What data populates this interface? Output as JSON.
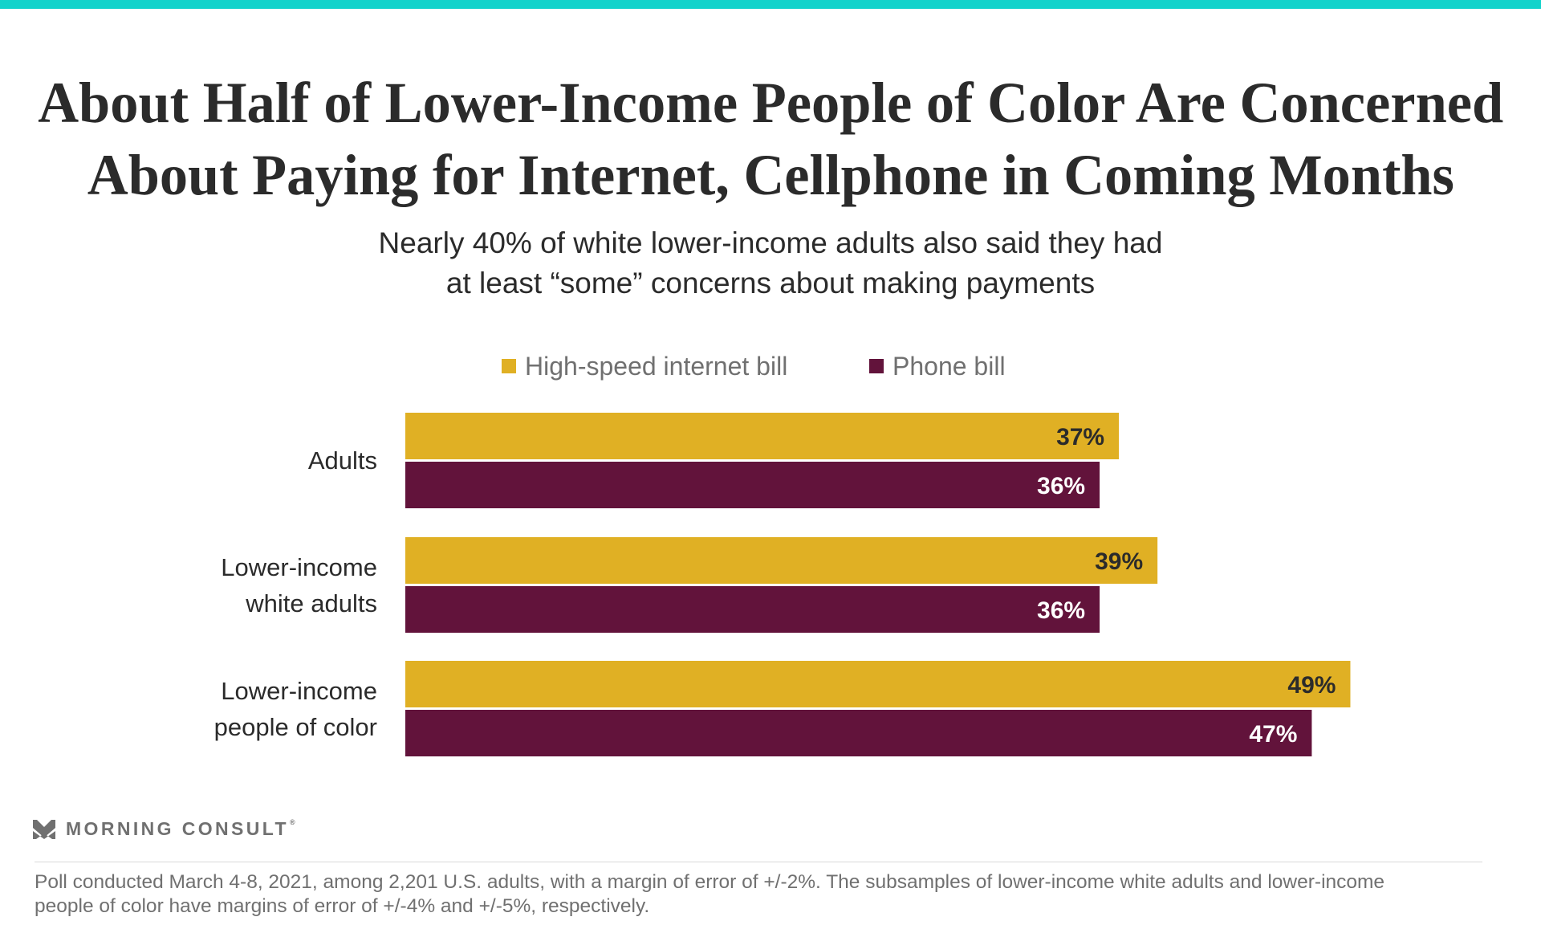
{
  "colors": {
    "accent_bar": "#12d3cb",
    "internet": "#e0b024",
    "phone": "#62133b",
    "label_on_internet": "#2b2b2b",
    "label_on_phone": "#ffffff"
  },
  "header": {
    "title_lines": [
      "About Half of Lower-Income People of Color Are Concerned",
      "About Paying for Internet, Cellphone in Coming Months"
    ],
    "subtitle_lines": [
      "Nearly 40% of white lower-income adults also said they had",
      "at least “some” concerns about making payments"
    ]
  },
  "chart_data": {
    "type": "bar",
    "orientation": "horizontal",
    "title": "About Half of Lower-Income People of Color Are Concerned About Paying for Internet, Cellphone in Coming Months",
    "subtitle": "Nearly 40% of white lower-income adults also said they had at least “some” concerns about making payments",
    "xlabel": "",
    "ylabel": "",
    "xlim": [
      0,
      100
    ],
    "grid": false,
    "legend_position": "top-center",
    "categories": [
      [
        "Adults"
      ],
      [
        "Lower-income",
        "white adults"
      ],
      [
        "Lower-income",
        "people of color"
      ]
    ],
    "series": [
      {
        "name": "High-speed internet bill",
        "color": "#e0b024",
        "values": [
          37,
          39,
          49
        ],
        "labels": [
          "37%",
          "39%",
          "49%"
        ]
      },
      {
        "name": "Phone bill",
        "color": "#62133b",
        "values": [
          36,
          36,
          47
        ],
        "labels": [
          "36%",
          "36%",
          "47%"
        ]
      }
    ]
  },
  "brand": {
    "name": "MORNING CONSULT",
    "registered_mark": "®",
    "icon": "morning-consult-logo-icon"
  },
  "footnote": {
    "lines": [
      "Poll conducted March 4-8, 2021, among 2,201 U.S. adults, with a margin of error of +/-2%. The subsamples of lower-income white adults and lower-income",
      "people of color have margins of error of +/-4% and +/-5%, respectively."
    ]
  }
}
